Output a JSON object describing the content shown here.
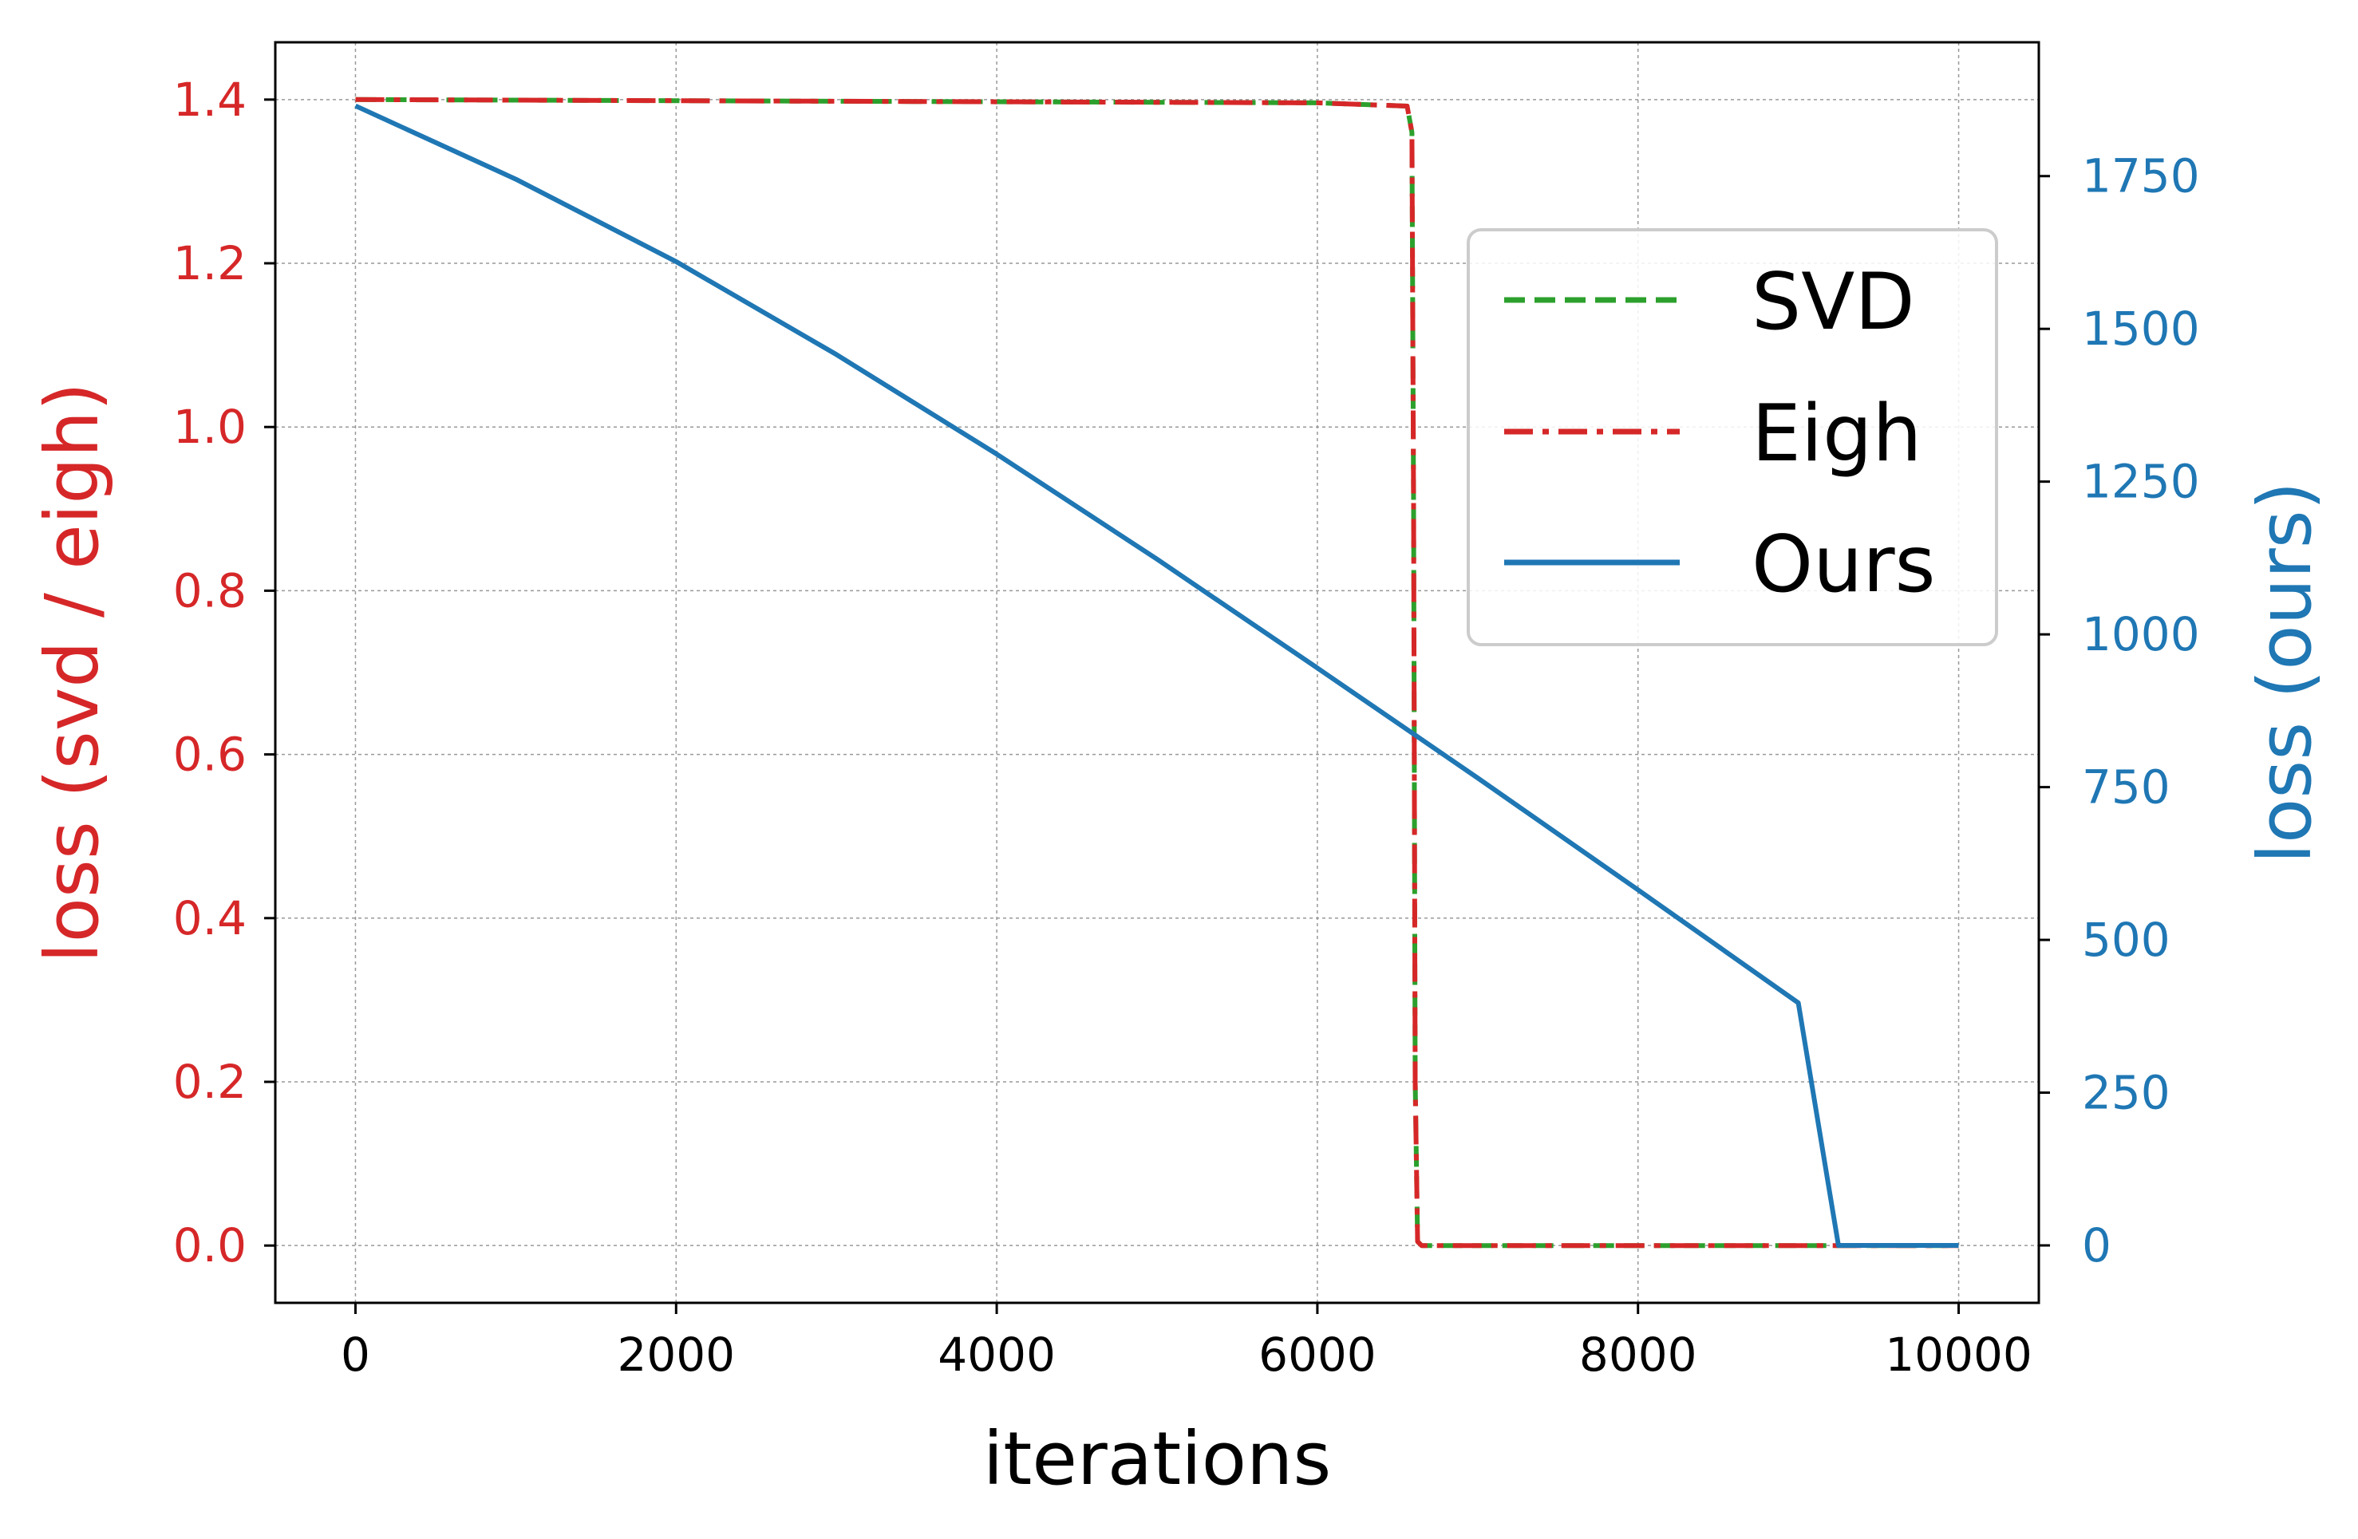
{
  "chart_data": {
    "type": "line",
    "xlabel": "iterations",
    "ylabel_left": "loss (svd / eigh)",
    "ylabel_right": "loss (ours)",
    "xlim": [
      -500,
      10500
    ],
    "ylim_left": [
      -0.07,
      1.47
    ],
    "ylim_right": [
      -94,
      1969
    ],
    "x_ticks": [
      0,
      2000,
      4000,
      6000,
      8000,
      10000
    ],
    "y_ticks_left": [
      0.0,
      0.2,
      0.4,
      0.6,
      0.8,
      1.0,
      1.2,
      1.4
    ],
    "y_ticks_right": [
      0,
      250,
      500,
      750,
      1000,
      1250,
      1500,
      1750
    ],
    "grid": true,
    "legend_position": "upper-right",
    "colors": {
      "left_axis": "#d62728",
      "right_axis": "#1f77b4",
      "svd": "#2ca02c",
      "eigh": "#d62728",
      "ours": "#1f77b4"
    },
    "series": [
      {
        "name": "SVD",
        "axis": "left",
        "style": "dashed",
        "color": "#2ca02c",
        "x": [
          0,
          3000,
          6000,
          6560,
          6590,
          6600,
          6610,
          6625,
          6650,
          10000
        ],
        "y": [
          1.4,
          1.398,
          1.396,
          1.392,
          1.36,
          0.9,
          0.2,
          0.005,
          0.0,
          0.0
        ]
      },
      {
        "name": "Eigh",
        "axis": "left",
        "style": "dashdot",
        "color": "#d62728",
        "x": [
          0,
          3000,
          6000,
          6560,
          6590,
          6600,
          6610,
          6625,
          6650,
          10000
        ],
        "y": [
          1.4,
          1.398,
          1.396,
          1.392,
          1.36,
          0.9,
          0.2,
          0.005,
          0.0,
          0.0
        ]
      },
      {
        "name": "Ours",
        "axis": "right",
        "style": "solid",
        "color": "#1f77b4",
        "x": [
          0,
          1000,
          2000,
          3000,
          4000,
          5000,
          6000,
          7000,
          8000,
          9000,
          9250,
          10000
        ],
        "y": [
          1865,
          1745,
          1610,
          1458,
          1295,
          1123,
          945,
          765,
          582,
          397,
          0,
          0
        ]
      }
    ]
  }
}
